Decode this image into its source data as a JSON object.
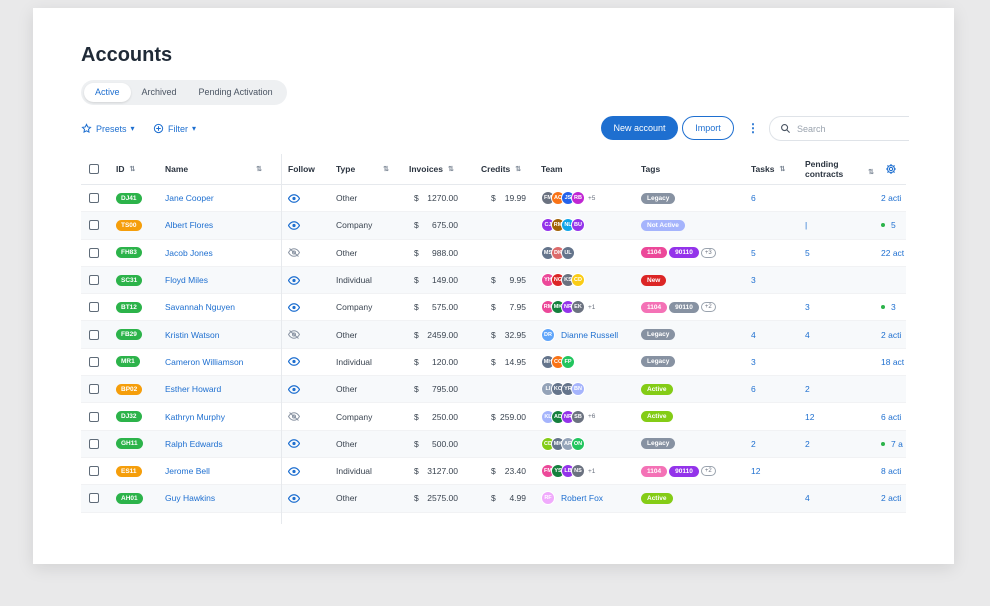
{
  "page": {
    "title": "Accounts"
  },
  "tabs": [
    {
      "label": "Active",
      "active": true
    },
    {
      "label": "Archived",
      "active": false
    },
    {
      "label": "Pending Activation",
      "active": false
    }
  ],
  "toolbar": {
    "presets_label": "Presets",
    "filter_label": "Filter",
    "new_account_label": "New account",
    "import_label": "Import",
    "search_placeholder": "Search"
  },
  "colors": {
    "accent": "#1e6fd0",
    "success": "#2cb34a",
    "warning": "#f59e0b"
  },
  "columns": {
    "id": "ID",
    "name": "Name",
    "follow": "Follow",
    "type": "Type",
    "invoices": "Invoices",
    "credits": "Credits",
    "team": "Team",
    "tags": "Tags",
    "tasks": "Tasks",
    "pending": "Pending contracts"
  },
  "rows": [
    {
      "id": "DJ41",
      "id_color": "green",
      "name": "Jane Cooper",
      "follow": true,
      "type": "Other",
      "invoice_cur": "$",
      "invoice": "1270.00",
      "credit_cur": "$",
      "credit": "19.99",
      "team": [
        {
          "i": "FM",
          "c": "#6b7280"
        },
        {
          "i": "AC",
          "c": "#f97316"
        },
        {
          "i": "JS",
          "c": "#2563eb"
        },
        {
          "i": "RB",
          "c": "#c026d3"
        }
      ],
      "team_more": "+5",
      "team_name": "",
      "tags": [
        {
          "t": "Legacy",
          "c": "#8792a2"
        }
      ],
      "tags_more": "",
      "tasks": "6",
      "pending": "",
      "contracts": "2 acti",
      "contracts_dot": false
    },
    {
      "id": "TS00",
      "id_color": "orange",
      "name": "Albert Flores",
      "follow": true,
      "type": "Company",
      "invoice_cur": "$",
      "invoice": "675.00",
      "credit_cur": "",
      "credit": "",
      "team": [
        {
          "i": "CJ",
          "c": "#9333ea"
        },
        {
          "i": "RM",
          "c": "#a16207"
        },
        {
          "i": "NL",
          "c": "#0ea5e9"
        },
        {
          "i": "BU",
          "c": "#9333ea"
        }
      ],
      "team_more": "",
      "team_name": "",
      "tags": [
        {
          "t": "Not Active",
          "c": "#a5b4fc"
        }
      ],
      "tags_more": "",
      "tasks": "",
      "pending": "|",
      "contracts": "5",
      "contracts_dot": true
    },
    {
      "id": "FH83",
      "id_color": "green",
      "name": "Jacob Jones",
      "follow": false,
      "type": "Other",
      "invoice_cur": "$",
      "invoice": "988.00",
      "credit_cur": "",
      "credit": "",
      "team": [
        {
          "i": "MS",
          "c": "#64748b"
        },
        {
          "i": "DK",
          "c": "#dc6b6b"
        },
        {
          "i": "UL",
          "c": "#64748b"
        }
      ],
      "team_more": "",
      "team_name": "",
      "tags": [
        {
          "t": "1104",
          "c": "#ec4899"
        },
        {
          "t": "90110",
          "c": "#9333ea"
        }
      ],
      "tags_more": "+3",
      "tasks": "5",
      "pending": "5",
      "contracts": "22 act",
      "contracts_dot": false
    },
    {
      "id": "SC31",
      "id_color": "green",
      "name": "Floyd Miles",
      "follow": true,
      "type": "Individual",
      "invoice_cur": "$",
      "invoice": "149.00",
      "credit_cur": "$",
      "credit": "9.95",
      "team": [
        {
          "i": "YH",
          "c": "#ec4899"
        },
        {
          "i": "NG",
          "c": "#dc2626"
        },
        {
          "i": "KS",
          "c": "#6b7280"
        },
        {
          "i": "CD",
          "c": "#facc15"
        }
      ],
      "team_more": "",
      "team_name": "",
      "tags": [
        {
          "t": "New",
          "c": "#dc2626"
        }
      ],
      "tags_more": "",
      "tasks": "3",
      "pending": "",
      "contracts": "",
      "contracts_dot": false
    },
    {
      "id": "BT12",
      "id_color": "green",
      "name": "Savannah Nguyen",
      "follow": true,
      "type": "Company",
      "invoice_cur": "$",
      "invoice": "575.00",
      "credit_cur": "$",
      "credit": "7.95",
      "team": [
        {
          "i": "RM",
          "c": "#ec4899"
        },
        {
          "i": "MK",
          "c": "#15803d"
        },
        {
          "i": "NR",
          "c": "#9333ea"
        },
        {
          "i": "EK",
          "c": "#6b7280"
        }
      ],
      "team_more": "+1",
      "team_name": "",
      "tags": [
        {
          "t": "1104",
          "c": "#f472b6"
        },
        {
          "t": "90110",
          "c": "#8792a2"
        }
      ],
      "tags_more": "+2",
      "tasks": "",
      "pending": "3",
      "contracts": "3",
      "contracts_dot": true
    },
    {
      "id": "FB29",
      "id_color": "green",
      "name": "Kristin Watson",
      "follow": false,
      "type": "Other",
      "invoice_cur": "$",
      "invoice": "2459.00",
      "credit_cur": "$",
      "credit": "32.95",
      "team": [
        {
          "i": "DR",
          "c": "#60a5fa"
        }
      ],
      "team_more": "",
      "team_name": "Dianne Russell",
      "tags": [
        {
          "t": "Legacy",
          "c": "#8792a2"
        }
      ],
      "tags_more": "",
      "tasks": "4",
      "pending": "4",
      "contracts": "2 acti",
      "contracts_dot": false
    },
    {
      "id": "MR1",
      "id_color": "green",
      "name": "Cameron Williamson",
      "follow": true,
      "type": "Individual",
      "invoice_cur": "$",
      "invoice": "120.00",
      "credit_cur": "$",
      "credit": "14.95",
      "team": [
        {
          "i": "MH",
          "c": "#64748b"
        },
        {
          "i": "CC",
          "c": "#f97316"
        },
        {
          "i": "FP",
          "c": "#22c55e"
        }
      ],
      "team_more": "",
      "team_name": "",
      "tags": [
        {
          "t": "Legacy",
          "c": "#8792a2"
        }
      ],
      "tags_more": "",
      "tasks": "3",
      "pending": "",
      "contracts": "18 act",
      "contracts_dot": false
    },
    {
      "id": "BP02",
      "id_color": "orange",
      "name": "Esther Howard",
      "follow": true,
      "type": "Other",
      "invoice_cur": "$",
      "invoice": "795.00",
      "credit_cur": "",
      "credit": "",
      "team": [
        {
          "i": "LI",
          "c": "#94a3b8"
        },
        {
          "i": "KO",
          "c": "#64748b"
        },
        {
          "i": "YR",
          "c": "#64748b"
        },
        {
          "i": "BN",
          "c": "#a5b4fc"
        }
      ],
      "team_more": "",
      "team_name": "",
      "tags": [
        {
          "t": "Active",
          "c": "#84cc16"
        }
      ],
      "tags_more": "",
      "tasks": "6",
      "pending": "2",
      "contracts": "",
      "contracts_dot": false
    },
    {
      "id": "DJ32",
      "id_color": "green",
      "name": "Kathryn Murphy",
      "follow": false,
      "type": "Company",
      "invoice_cur": "$",
      "invoice": "250.00",
      "credit_cur": "$",
      "credit": "259.00",
      "team": [
        {
          "i": "KL",
          "c": "#a5b4fc"
        },
        {
          "i": "AD",
          "c": "#15803d"
        },
        {
          "i": "NR",
          "c": "#9333ea"
        },
        {
          "i": "SB",
          "c": "#6b7280"
        }
      ],
      "team_more": "+6",
      "team_name": "",
      "tags": [
        {
          "t": "Active",
          "c": "#84cc16"
        }
      ],
      "tags_more": "",
      "tasks": "",
      "pending": "12",
      "contracts": "6 acti",
      "contracts_dot": false
    },
    {
      "id": "GH11",
      "id_color": "green",
      "name": "Ralph Edwards",
      "follow": true,
      "type": "Other",
      "invoice_cur": "$",
      "invoice": "500.00",
      "credit_cur": "",
      "credit": "",
      "team": [
        {
          "i": "CD",
          "c": "#84cc16"
        },
        {
          "i": "MK",
          "c": "#64748b"
        },
        {
          "i": "AR",
          "c": "#94a3b8"
        },
        {
          "i": "ON",
          "c": "#22c55e"
        }
      ],
      "team_more": "",
      "team_name": "",
      "tags": [
        {
          "t": "Legacy",
          "c": "#8792a2"
        }
      ],
      "tags_more": "",
      "tasks": "2",
      "pending": "2",
      "contracts": "7 a",
      "contracts_dot": true
    },
    {
      "id": "ES11",
      "id_color": "orange",
      "name": "Jerome Bell",
      "follow": true,
      "type": "Individual",
      "invoice_cur": "$",
      "invoice": "3127.00",
      "credit_cur": "$",
      "credit": "23.40",
      "team": [
        {
          "i": "FM",
          "c": "#ec4899"
        },
        {
          "i": "YS",
          "c": "#15803d"
        },
        {
          "i": "LB",
          "c": "#9333ea"
        },
        {
          "i": "NS",
          "c": "#6b7280"
        }
      ],
      "team_more": "+1",
      "team_name": "",
      "tags": [
        {
          "t": "1104",
          "c": "#f472b6"
        },
        {
          "t": "90110",
          "c": "#9333ea"
        }
      ],
      "tags_more": "+2",
      "tasks": "12",
      "pending": "",
      "contracts": "8 acti",
      "contracts_dot": false
    },
    {
      "id": "AH01",
      "id_color": "green",
      "name": "Guy Hawkins",
      "follow": true,
      "type": "Other",
      "invoice_cur": "$",
      "invoice": "2575.00",
      "credit_cur": "$",
      "credit": "4.99",
      "team": [
        {
          "i": "RF",
          "c": "#f0abfc"
        }
      ],
      "team_more": "",
      "team_name": "Robert Fox",
      "tags": [
        {
          "t": "Active",
          "c": "#84cc16"
        }
      ],
      "tags_more": "",
      "tasks": "",
      "pending": "4",
      "contracts": "2 acti",
      "contracts_dot": false
    }
  ]
}
